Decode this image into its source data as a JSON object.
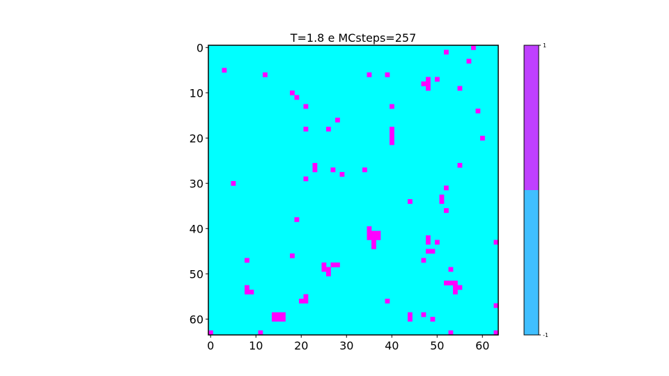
{
  "chart_data": {
    "type": "heatmap",
    "title": "T=1.8 e MCsteps=257",
    "grid_size": 64,
    "background_value": -1,
    "x_ticks": [
      0,
      10,
      20,
      30,
      40,
      50,
      60
    ],
    "y_ticks": [
      0,
      10,
      20,
      30,
      40,
      50,
      60
    ],
    "xlim": [
      0,
      64
    ],
    "ylim": [
      64,
      0
    ],
    "cell_colors": {
      "-1": "#00ffff",
      "1": "#ff00ff"
    },
    "colorbar": {
      "max_label": "1",
      "min_label": "-1",
      "upper_color": "#bf40ff",
      "lower_color": "#40bfff",
      "split_fraction": 0.5
    },
    "spin_up_cells": [
      [
        58,
        0
      ],
      [
        52,
        1
      ],
      [
        57,
        3
      ],
      [
        3,
        5
      ],
      [
        12,
        6
      ],
      [
        35,
        6
      ],
      [
        39,
        6
      ],
      [
        48,
        7
      ],
      [
        50,
        7
      ],
      [
        47,
        8
      ],
      [
        48,
        8
      ],
      [
        48,
        9
      ],
      [
        55,
        9
      ],
      [
        18,
        10
      ],
      [
        19,
        11
      ],
      [
        21,
        13
      ],
      [
        40,
        13
      ],
      [
        59,
        14
      ],
      [
        28,
        16
      ],
      [
        21,
        18
      ],
      [
        26,
        18
      ],
      [
        40,
        18
      ],
      [
        40,
        19
      ],
      [
        40,
        20
      ],
      [
        60,
        20
      ],
      [
        40,
        21
      ],
      [
        23,
        26
      ],
      [
        55,
        26
      ],
      [
        23,
        27
      ],
      [
        27,
        27
      ],
      [
        34,
        27
      ],
      [
        29,
        28
      ],
      [
        21,
        29
      ],
      [
        5,
        30
      ],
      [
        52,
        31
      ],
      [
        51,
        33
      ],
      [
        51,
        34
      ],
      [
        44,
        34
      ],
      [
        52,
        36
      ],
      [
        19,
        38
      ],
      [
        35,
        40
      ],
      [
        35,
        41
      ],
      [
        36,
        41
      ],
      [
        37,
        41
      ],
      [
        35,
        42
      ],
      [
        36,
        42
      ],
      [
        37,
        42
      ],
      [
        36,
        43
      ],
      [
        36,
        44
      ],
      [
        48,
        42
      ],
      [
        48,
        43
      ],
      [
        50,
        43
      ],
      [
        63,
        43
      ],
      [
        48,
        45
      ],
      [
        49,
        45
      ],
      [
        18,
        46
      ],
      [
        8,
        47
      ],
      [
        47,
        47
      ],
      [
        25,
        48
      ],
      [
        27,
        48
      ],
      [
        28,
        48
      ],
      [
        25,
        49
      ],
      [
        26,
        49
      ],
      [
        53,
        49
      ],
      [
        26,
        50
      ],
      [
        52,
        52
      ],
      [
        53,
        52
      ],
      [
        54,
        52
      ],
      [
        8,
        53
      ],
      [
        54,
        53
      ],
      [
        55,
        53
      ],
      [
        8,
        54
      ],
      [
        9,
        54
      ],
      [
        54,
        54
      ],
      [
        21,
        55
      ],
      [
        20,
        56
      ],
      [
        21,
        56
      ],
      [
        39,
        56
      ],
      [
        63,
        57
      ],
      [
        14,
        59
      ],
      [
        15,
        59
      ],
      [
        16,
        59
      ],
      [
        44,
        59
      ],
      [
        47,
        59
      ],
      [
        14,
        60
      ],
      [
        15,
        60
      ],
      [
        16,
        60
      ],
      [
        44,
        60
      ],
      [
        49,
        60
      ],
      [
        0,
        63
      ],
      [
        11,
        63
      ],
      [
        53,
        63
      ],
      [
        63,
        63
      ]
    ]
  }
}
